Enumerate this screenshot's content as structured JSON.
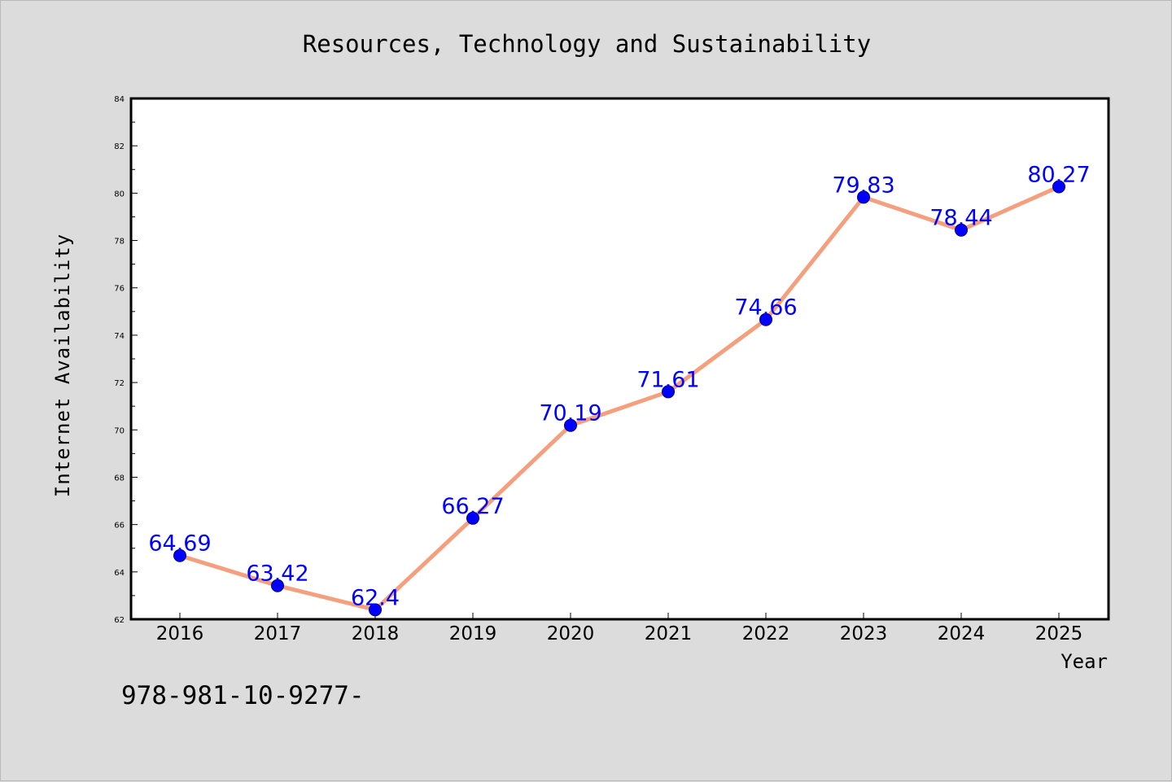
{
  "chart_data": {
    "type": "line",
    "title": "Resources, Technology and Sustainability",
    "xlabel": "Year",
    "ylabel": "Internet Availability",
    "categories": [
      "2016",
      "2017",
      "2018",
      "2019",
      "2020",
      "2021",
      "2022",
      "2023",
      "2024",
      "2025"
    ],
    "series": [
      {
        "values": [
          64.69,
          63.42,
          62.4,
          66.27,
          70.19,
          71.61,
          74.66,
          79.83,
          78.44,
          80.27
        ],
        "labels": [
          "64.69",
          "63.42",
          "62.4",
          "66.27",
          "70.19",
          "71.61",
          "74.66",
          "79.83",
          "78.44",
          "80.27"
        ],
        "line_color": "#f4a07e",
        "marker_color": "#0000ff"
      }
    ],
    "ylim": [
      62,
      84
    ],
    "yticks": [
      62,
      64,
      66,
      68,
      70,
      72,
      74,
      76,
      78,
      80,
      82,
      84
    ],
    "grid": false,
    "legend": "none"
  },
  "footer_text": "978-981-10-9277-",
  "colors": {
    "background": "#dcdcdc",
    "plot_background": "#ffffff",
    "data_label": "#0000ff"
  }
}
